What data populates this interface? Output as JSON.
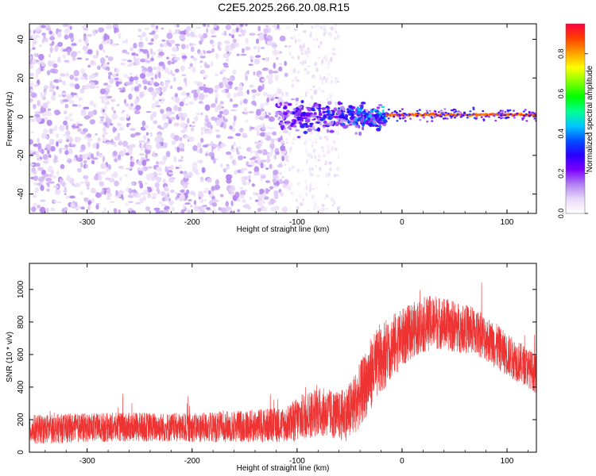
{
  "figure_title": "C2E5.2025.266.20.08.R15",
  "chart_data": [
    {
      "type": "heatmap",
      "title": "C2E5.2025.266.20.08.R15",
      "xlabel": "Height of straight line (km)",
      "ylabel": "Frequency (Hz)",
      "xlim": [
        -355,
        128
      ],
      "ylim": [
        -50,
        48
      ],
      "x_ticks": [
        -300,
        -200,
        -100,
        0,
        100
      ],
      "x_tick_labels": [
        "-300",
        "-200",
        "-100",
        "0",
        "100"
      ],
      "y_ticks": [
        -40,
        -20,
        0,
        20,
        40
      ],
      "y_tick_labels": [
        "-40",
        "-20",
        "0",
        "20",
        "40"
      ],
      "colorbar": {
        "label": "Normalized spectral amplitude",
        "range": [
          0,
          0.95
        ],
        "ticks": [
          0,
          0.2,
          0.4,
          0.6,
          0.8
        ],
        "tick_labels": [
          "0.0",
          "0.2",
          "0.4",
          "0.6",
          "0.8"
        ],
        "colormap": [
          "#ffffff",
          "#e8d8f8",
          "#b080f0",
          "#7a00ff",
          "#2a00ff",
          "#0050ff",
          "#00c8ff",
          "#00ff90",
          "#00ff00",
          "#80ff00",
          "#ffff00",
          "#ffa000",
          "#ff4000",
          "#ff0040"
        ]
      },
      "description_regions": [
        {
          "x_range": [
            -355,
            -110
          ],
          "amplitude": [
            0.05,
            0.15
          ],
          "kind": "noise"
        },
        {
          "x_range": [
            -110,
            -60
          ],
          "amplitude": [
            0.02,
            0.08
          ],
          "kind": "sparse-noise"
        },
        {
          "x_range": [
            -120,
            -15
          ],
          "amplitude": [
            0.1,
            0.5
          ],
          "kind": "signal-onset",
          "freq_center": 0
        },
        {
          "x_range": [
            -15,
            128
          ],
          "amplitude": [
            0.8,
            0.9
          ],
          "kind": "carrier-line",
          "freq_center": 1
        }
      ]
    },
    {
      "type": "line",
      "xlabel": "Height of straight line (km)",
      "ylabel": "SNR (10 * v/v)",
      "xlim": [
        -355,
        128
      ],
      "ylim": [
        0,
        1160
      ],
      "x_ticks": [
        -300,
        -200,
        -100,
        0,
        100
      ],
      "x_tick_labels": [
        "-300",
        "-200",
        "-100",
        "0",
        "100"
      ],
      "y_ticks": [
        0,
        200,
        400,
        600,
        800,
        1000
      ],
      "y_tick_labels": [
        "0",
        "200",
        "400",
        "600",
        "800",
        "1000"
      ],
      "series": [
        {
          "name": "SNR",
          "color": "#ee3333",
          "envelope_x": [
            -355,
            -300,
            -250,
            -200,
            -150,
            -110,
            -100,
            -90,
            -80,
            -70,
            -60,
            -50,
            -40,
            -30,
            -20,
            -10,
            0,
            10,
            20,
            30,
            40,
            50,
            60,
            70,
            80,
            90,
            100,
            110,
            120,
            128
          ],
          "envelope_mean": [
            140,
            150,
            155,
            150,
            160,
            170,
            200,
            230,
            250,
            240,
            220,
            250,
            350,
            480,
            580,
            650,
            700,
            750,
            780,
            800,
            790,
            770,
            760,
            740,
            700,
            650,
            600,
            560,
            520,
            480
          ],
          "envelope_spread": [
            90,
            90,
            90,
            90,
            100,
            110,
            140,
            150,
            150,
            150,
            150,
            180,
            200,
            220,
            220,
            200,
            180,
            170,
            170,
            170,
            160,
            160,
            150,
            150,
            140,
            140,
            130,
            130,
            120,
            120
          ]
        }
      ]
    }
  ]
}
